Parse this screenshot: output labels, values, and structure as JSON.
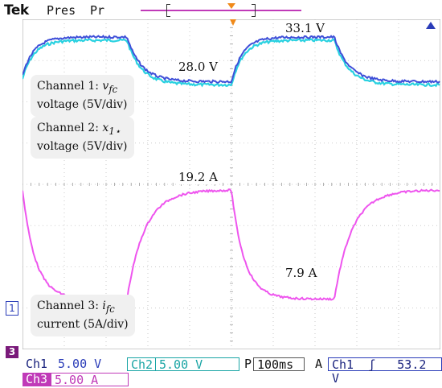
{
  "header": {
    "brand": "Tek",
    "mode": "Pres",
    "mode2": "Pr"
  },
  "annotations": {
    "box1": {
      "line1_prefix": "Channel 1: ",
      "line1_var": "v",
      "line1_sub": "fc",
      "line2": "voltage (5V/div)"
    },
    "box2": {
      "line1_prefix": "Channel 2: ",
      "line1_var": "x",
      "line1_sub": "1⋆",
      "line2": "voltage (5V/div)"
    },
    "box3": {
      "line1_prefix": "Channel 3: ",
      "line1_var": "i",
      "line1_sub": "fc",
      "line2": "current (5A/div)"
    }
  },
  "readouts": {
    "v_low": "28.0 V",
    "v_high": "33.1 V",
    "i_high": "19.2 A",
    "i_low": "7.9 A"
  },
  "markers": {
    "ch1": "1",
    "ch3": "3"
  },
  "settings": {
    "ch1_name": "Ch1",
    "ch1_scale": "5.00 V",
    "ch2_name": "Ch2",
    "ch2_scale": "5.00 V",
    "ch3_name": "Ch3",
    "ch3_scale": "5.00 A",
    "timebase_label": "P",
    "timebase": "100ms",
    "trigger_label": "A",
    "trigger_source": "Ch1",
    "trigger_slope": "ʃ",
    "trigger_level": "53.2 V"
  },
  "colors": {
    "ch1": "#3f4fd8",
    "ch2": "#29d1e0",
    "ch3": "#ee55ee",
    "grid": "#bdbdbd",
    "trigger": "#f08a1a"
  },
  "chart_data": {
    "type": "line",
    "time_div": "100ms",
    "series": [
      {
        "name": "Channel 1: v_fc",
        "levels": [
          28.0,
          33.1
        ]
      },
      {
        "name": "Channel 2: x_1*",
        "levels": [
          28.0,
          33.1
        ]
      },
      {
        "name": "Channel 3: i_fc",
        "levels": [
          19.2,
          7.9
        ]
      }
    ]
  }
}
